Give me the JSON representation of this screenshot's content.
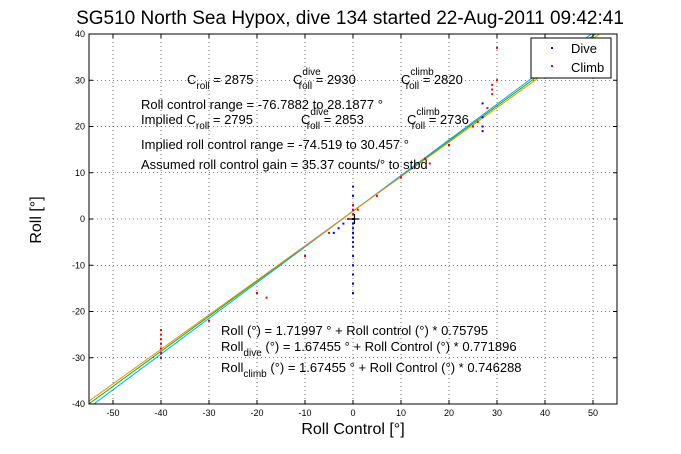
{
  "chart_data": {
    "type": "scatter",
    "title": "SG510 North Sea Hypox, dive 134 started 22-Aug-2011 09:42:41",
    "xlabel": "Roll Control [°]",
    "ylabel": "Roll [°]",
    "xlim": [
      -55,
      55
    ],
    "ylim": [
      -40,
      40
    ],
    "xticks": [
      -50,
      -40,
      -30,
      -20,
      -10,
      0,
      10,
      20,
      30,
      40,
      50
    ],
    "yticks": [
      -40,
      -30,
      -20,
      -10,
      0,
      10,
      20,
      30,
      40
    ],
    "grid": true,
    "legend": {
      "placement": "top-right",
      "entries": [
        "Dive",
        "Climb"
      ]
    },
    "series": [
      {
        "name": "Dive",
        "color": "#0000ff",
        "x": [
          -40,
          -40,
          -40,
          -4,
          -3,
          -2,
          -1,
          0,
          0,
          0,
          0,
          0,
          0,
          0,
          0,
          0,
          0,
          0,
          0,
          0,
          0,
          0,
          0,
          0,
          0,
          0,
          27,
          27,
          27,
          27
        ],
        "y": [
          -28,
          -29,
          -30,
          -3,
          -2,
          -1,
          0,
          7,
          5,
          3,
          2,
          1,
          0,
          -1,
          -2,
          -3,
          -4,
          -5,
          -6,
          -8,
          -10,
          -12,
          -14,
          -16,
          -3,
          1,
          19,
          20,
          22,
          25
        ]
      },
      {
        "name": "Climb",
        "color": "#ff0000",
        "x": [
          -40,
          -40,
          -40,
          -40,
          -40,
          -40,
          -40,
          -30,
          -20,
          -18,
          -10,
          -5,
          -1,
          0,
          0,
          0,
          1,
          5,
          10,
          15,
          16,
          20,
          25,
          26,
          28,
          29,
          29,
          29,
          30,
          30
        ],
        "y": [
          -24,
          -25,
          -26,
          -27,
          -28,
          -29,
          -30,
          -22,
          -16,
          -17,
          -8,
          -3,
          0,
          1,
          2,
          3,
          2,
          5,
          9,
          13,
          12,
          16,
          20,
          21,
          24,
          27,
          28,
          29,
          30,
          37
        ]
      }
    ],
    "fit_lines": [
      {
        "color": "#00bb00",
        "intercept": 1.71997,
        "slope": 0.75795
      },
      {
        "color": "#00aaff",
        "intercept": 1.67455,
        "slope": 0.771896
      },
      {
        "color": "#ff8800",
        "intercept": 1.67455,
        "slope": 0.746288
      }
    ],
    "crosshair": {
      "x": 0.3,
      "y": 0
    },
    "annotations": {
      "croll": {
        "c": "C",
        "sub": "roll",
        "eq": " = 2875"
      },
      "cdive": {
        "c": "C",
        "sup": "dive",
        "sub": "roll",
        "eq": " = 2930"
      },
      "cclimb": {
        "c": "C",
        "sup": "climb",
        "sub": "roll",
        "eq": " = 2820"
      },
      "range": "Roll control range = -76.7882 to 28.1877 °",
      "implied_c": {
        "label": "Implied C",
        "sub": "roll",
        "eq": " = 2795"
      },
      "implied_cdive": {
        "c": "C",
        "sup": "dive",
        "sub": "roll",
        "eq": " = 2853"
      },
      "implied_cclimb": {
        "c": "C",
        "sup": "climb",
        "sub": "roll",
        "eq": " = 2736"
      },
      "implied_range": "Implied roll control range = -74.519 to 30.457 °",
      "gain": "Assumed roll control gain = 35.37 counts/° to stbd",
      "eq1": "Roll (°) = 1.71997 ° + Roll control (°) * 0.75795",
      "eq2": {
        "pre": "Roll",
        "sub": "dive",
        "rest": " (°) = 1.67455 ° + Roll Control (°) * 0.771896"
      },
      "eq3": {
        "pre": "Roll",
        "sub": "climb",
        "rest": " (°) = 1.67455 ° + Roll Control (°) * 0.746288"
      }
    }
  }
}
